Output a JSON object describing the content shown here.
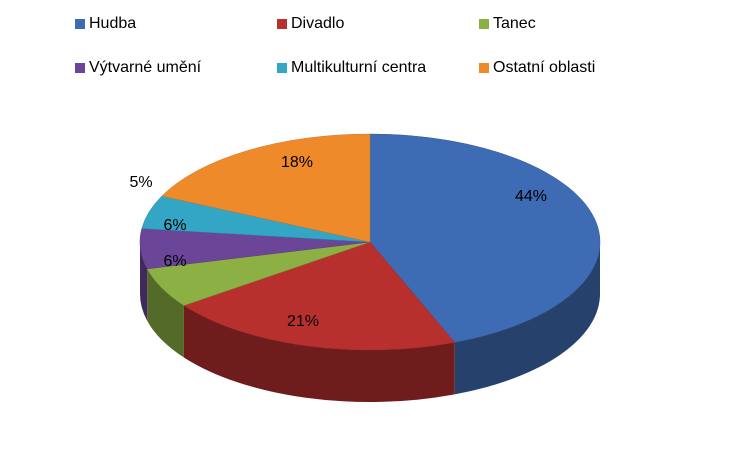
{
  "chart_data": {
    "type": "pie",
    "categories": [
      "Hudba",
      "Divadlo",
      "Tanec",
      "Výtvarné umění",
      "Multikulturní centra",
      "Ostatní oblasti"
    ],
    "values": [
      44,
      21,
      6,
      6,
      5,
      18
    ],
    "value_labels": [
      "44%",
      "21%",
      "6%",
      "6%",
      "5%",
      "18%"
    ],
    "colors": [
      "#3e6cb4",
      "#b8302e",
      "#8cb043",
      "#6b4597",
      "#34a6c5",
      "#ef8a2b"
    ],
    "legend": "top"
  }
}
